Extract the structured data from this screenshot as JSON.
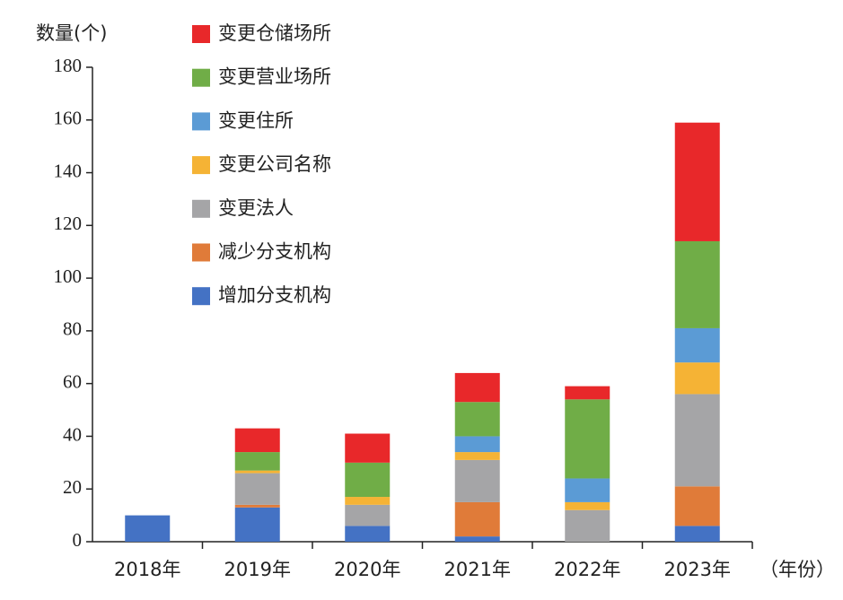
{
  "chart_data": {
    "type": "stacked_bar",
    "y_label": "数量(个)",
    "x_label": "（年份）",
    "categories": [
      "2018年",
      "2019年",
      "2020年",
      "2021年",
      "2022年",
      "2023年"
    ],
    "series": [
      {
        "name": "增加分支机构",
        "color": "#4472c4",
        "values": [
          10,
          13,
          6,
          2,
          0,
          6
        ]
      },
      {
        "name": "减少分支机构",
        "color": "#e07b39",
        "values": [
          0,
          1,
          0,
          13,
          0,
          15
        ]
      },
      {
        "name": "变更法人",
        "color": "#a5a5a7",
        "values": [
          0,
          12,
          8,
          16,
          12,
          35
        ]
      },
      {
        "name": "变更公司名称",
        "color": "#f5b335",
        "values": [
          0,
          1,
          3,
          3,
          3,
          12
        ]
      },
      {
        "name": "变更住所",
        "color": "#5b9bd5",
        "values": [
          0,
          0,
          0,
          6,
          9,
          13
        ]
      },
      {
        "name": "变更营业场所",
        "color": "#70ad47",
        "values": [
          0,
          7,
          13,
          13,
          30,
          33
        ]
      },
      {
        "name": "变更仓储场所",
        "color": "#e8282a",
        "values": [
          0,
          9,
          11,
          11,
          5,
          45
        ]
      }
    ],
    "ylim": [
      0,
      180
    ],
    "yticks": [
      0,
      20,
      40,
      60,
      80,
      100,
      120,
      140,
      160,
      180
    ]
  }
}
